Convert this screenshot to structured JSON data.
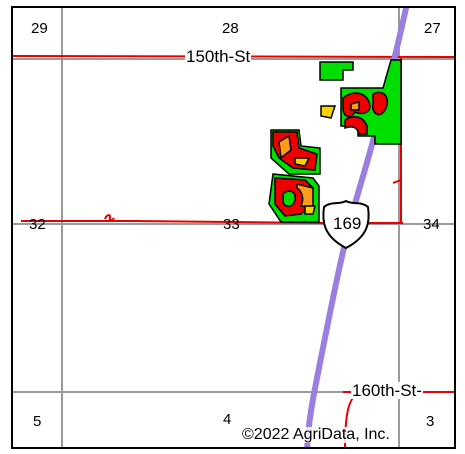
{
  "sections": {
    "s29": "29",
    "s28": "28",
    "s27": "27",
    "s32": "32",
    "s33": "33",
    "s34": "34",
    "s5": "5",
    "s4": "4",
    "s3": "3"
  },
  "roads": {
    "north": "150th-St",
    "south": "160th-St-"
  },
  "highway": {
    "number": "169"
  },
  "copyright": "©2022 AgriData, Inc.",
  "colors": {
    "section_line": "#9a9a9a",
    "road": "#e60000",
    "highway": "#9b7fe0",
    "field_green": "#00e000",
    "field_red": "#ee0000",
    "field_yellow": "#ffd000",
    "field_orange": "#ff9a1a"
  }
}
